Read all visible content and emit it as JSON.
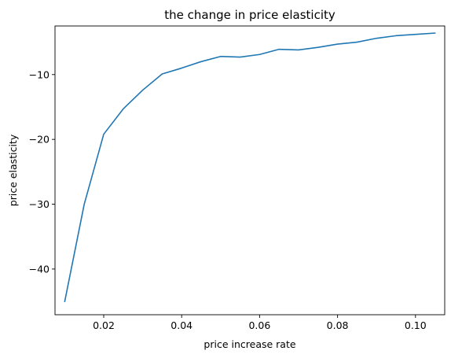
{
  "chart_data": {
    "type": "line",
    "title": "the change in price elasticity",
    "xlabel": "price increase rate",
    "ylabel": "price elasticity",
    "xlim": [
      0.0075,
      0.1075
    ],
    "ylim": [
      -47.05,
      -2.5
    ],
    "xticks": [
      0.02,
      0.04,
      0.06,
      0.08,
      0.1
    ],
    "xtick_labels": [
      "0.02",
      "0.04",
      "0.06",
      "0.08",
      "0.10"
    ],
    "yticks": [
      -40,
      -30,
      -20,
      -10
    ],
    "ytick_labels": [
      "−40",
      "−30",
      "−20",
      "−10"
    ],
    "grid": false,
    "series": [
      {
        "color": "#1f77b4",
        "x": [
          0.01,
          0.015,
          0.02,
          0.025,
          0.03,
          0.035,
          0.04,
          0.045,
          0.05,
          0.055,
          0.06,
          0.065,
          0.07,
          0.075,
          0.08,
          0.085,
          0.09,
          0.095,
          0.1,
          0.105
        ],
        "y": [
          -45.0,
          -30.0,
          -19.2,
          -15.3,
          -12.4,
          -9.9,
          -9.0,
          -8.0,
          -7.2,
          -7.3,
          -6.9,
          -6.1,
          -6.2,
          -5.8,
          -5.3,
          -5.0,
          -4.4,
          -4.0,
          -3.8,
          -3.6
        ]
      }
    ]
  }
}
